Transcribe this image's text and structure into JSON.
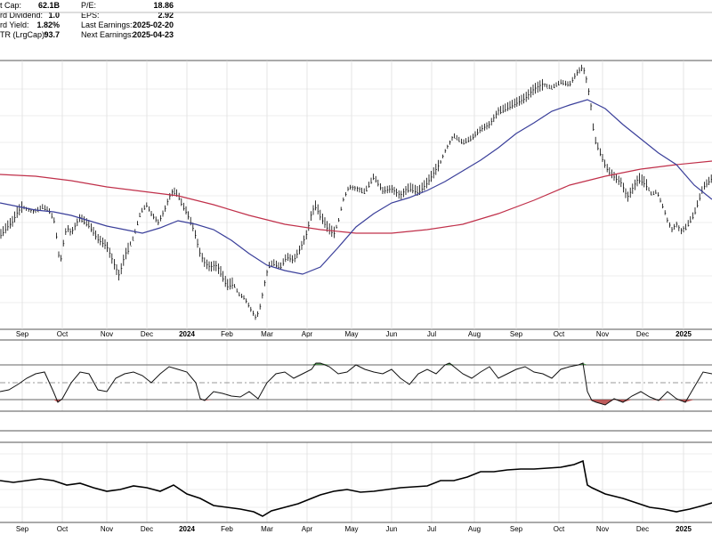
{
  "stats": {
    "left": [
      {
        "label": "t Cap:",
        "value": "62.1B"
      },
      {
        "label": "rd Dividend:",
        "value": "1.0"
      },
      {
        "label": "rd Yield:",
        "value": "1.82%"
      },
      {
        "label": "TR (LrgCap):",
        "value": "93.7"
      }
    ],
    "right": [
      {
        "label": "P/E:",
        "value": "18.86"
      },
      {
        "label": "EPS:",
        "value": "2.92"
      },
      {
        "label": "Last Earnings:",
        "value": "2025-02-20"
      },
      {
        "label": "Next Earnings:",
        "value": "2025-04-23"
      }
    ]
  },
  "colors": {
    "price": "#000000",
    "ma_short": "#3a3f9a",
    "ma_long": "#c0304a",
    "overbought_fill": "#3c8c3c",
    "oversold_fill": "#b34040",
    "grid": "#dcdcdc",
    "frame": "#555555"
  },
  "chart_data": [
    {
      "type": "line",
      "panel": "price",
      "x_ticks": [
        "Sep",
        "Oct",
        "Nov",
        "Dec",
        "2024",
        "Feb",
        "Mar",
        "Apr",
        "May",
        "Jun",
        "Jul",
        "Aug",
        "Sep",
        "Oct",
        "Nov",
        "Dec",
        "2025"
      ],
      "bold_ticks": [
        "2024",
        "2025"
      ],
      "series": [
        {
          "role": "price",
          "x": [
            0,
            5,
            10,
            15,
            18,
            25,
            30,
            38,
            48,
            55,
            62,
            65,
            68,
            72,
            75,
            80,
            90,
            100,
            110,
            120,
            128,
            134,
            140,
            150,
            158,
            165,
            170,
            178,
            185,
            190,
            195,
            200,
            205,
            210,
            218,
            225,
            230,
            236,
            242,
            248,
            255,
            262,
            268,
            275,
            282,
            288,
            293,
            297,
            302,
            308,
            315,
            322,
            330,
            338,
            345,
            350,
            355,
            360,
            368,
            375,
            380,
            385,
            392,
            400,
            410,
            420,
            430,
            440,
            450,
            460,
            470,
            480,
            490,
            495,
            500,
            510,
            520,
            530,
            540,
            550,
            560,
            570,
            580,
            590,
            600,
            610,
            620,
            630,
            640,
            648,
            655,
            660,
            664,
            668,
            672,
            676,
            680,
            684,
            688,
            692,
            698,
            705,
            712,
            718,
            725,
            732,
            738,
            742,
            746,
            750,
            755,
            760,
            765,
            770,
            775,
            780,
            785,
            790,
            795,
            800
          ],
          "y": [
            264,
            258,
            252,
            248,
            240,
            232,
            235,
            238,
            232,
            236,
            250,
            282,
            294,
            268,
            255,
            262,
            244,
            252,
            268,
            276,
            296,
            310,
            288,
            266,
            238,
            230,
            240,
            250,
            236,
            222,
            214,
            218,
            230,
            238,
            258,
            285,
            295,
            300,
            298,
            305,
            320,
            318,
            330,
            335,
            348,
            358,
            342,
            320,
            298,
            295,
            300,
            288,
            292,
            278,
            262,
            240,
            230,
            242,
            255,
            262,
            250,
            226,
            210,
            212,
            215,
            198,
            214,
            212,
            220,
            210,
            215,
            205,
            190,
            182,
            170,
            152,
            160,
            155,
            145,
            140,
            125,
            120,
            115,
            110,
            100,
            95,
            98,
            92,
            95,
            82,
            75,
            94,
            120,
            155,
            165,
            175,
            185,
            192,
            196,
            200,
            205,
            222,
            210,
            200,
            205,
            218,
            215,
            225,
            235,
            248,
            258,
            252,
            260,
            256,
            248,
            240,
            225,
            210,
            205,
            200
          ]
        },
        {
          "role": "ma_short",
          "x": [
            0,
            20,
            40,
            60,
            80,
            100,
            120,
            140,
            160,
            180,
            200,
            220,
            240,
            260,
            280,
            300,
            320,
            340,
            360,
            380,
            400,
            420,
            440,
            460,
            480,
            500,
            520,
            540,
            560,
            580,
            600,
            620,
            640,
            660,
            680,
            700,
            720,
            740,
            760,
            780,
            800
          ],
          "y": [
            228,
            232,
            236,
            238,
            242,
            248,
            254,
            258,
            262,
            256,
            248,
            252,
            258,
            270,
            285,
            298,
            304,
            308,
            300,
            278,
            255,
            240,
            228,
            222,
            214,
            204,
            192,
            180,
            166,
            150,
            138,
            125,
            118,
            112,
            122,
            140,
            156,
            172,
            185,
            208,
            224
          ]
        },
        {
          "role": "ma_long",
          "x": [
            0,
            40,
            80,
            120,
            160,
            200,
            240,
            280,
            320,
            360,
            400,
            440,
            480,
            520,
            560,
            600,
            640,
            680,
            720,
            760,
            800
          ],
          "y": [
            196,
            198,
            203,
            210,
            215,
            220,
            230,
            242,
            252,
            258,
            262,
            262,
            258,
            252,
            240,
            225,
            208,
            198,
            190,
            185,
            181
          ]
        }
      ]
    },
    {
      "type": "line",
      "panel": "oscillator",
      "x_ticks": [
        "Sep",
        "Oct",
        "Nov",
        "Dec",
        "2024",
        "Feb",
        "Mar",
        "Apr",
        "May",
        "Jun",
        "Jul",
        "Aug",
        "Sep",
        "Oct",
        "Nov",
        "Dec",
        "2025"
      ],
      "y_levels": {
        "overbought": 410,
        "mid": 430,
        "oversold": 449
      },
      "series": [
        {
          "role": "oscillator",
          "x": [
            0,
            10,
            20,
            30,
            40,
            50,
            60,
            65,
            70,
            80,
            90,
            100,
            110,
            120,
            130,
            140,
            150,
            160,
            170,
            180,
            190,
            200,
            210,
            220,
            225,
            230,
            240,
            250,
            260,
            270,
            280,
            290,
            300,
            310,
            320,
            330,
            340,
            350,
            355,
            360,
            370,
            380,
            390,
            400,
            410,
            420,
            430,
            440,
            450,
            460,
            470,
            480,
            490,
            500,
            505,
            510,
            520,
            530,
            540,
            550,
            560,
            570,
            580,
            590,
            600,
            610,
            620,
            630,
            640,
            650,
            655,
            660,
            665,
            670,
            680,
            690,
            700,
            710,
            720,
            730,
            740,
            750,
            760,
            770,
            780,
            790,
            800
          ],
          "y": [
            440,
            438,
            432,
            425,
            420,
            418,
            440,
            452,
            448,
            430,
            418,
            420,
            438,
            440,
            425,
            420,
            418,
            422,
            430,
            420,
            412,
            415,
            418,
            430,
            448,
            450,
            440,
            442,
            445,
            446,
            440,
            448,
            430,
            420,
            418,
            425,
            420,
            415,
            408,
            408,
            412,
            420,
            418,
            410,
            415,
            418,
            420,
            415,
            425,
            432,
            420,
            415,
            420,
            410,
            408,
            412,
            420,
            425,
            418,
            412,
            425,
            420,
            415,
            412,
            418,
            420,
            425,
            415,
            412,
            410,
            408,
            440,
            450,
            452,
            455,
            448,
            452,
            445,
            440,
            446,
            450,
            440,
            448,
            452,
            435,
            418,
            420
          ]
        }
      ]
    },
    {
      "type": "line",
      "panel": "relative_strength",
      "x_ticks": [
        "Sep",
        "Oct",
        "Nov",
        "Dec",
        "2024",
        "Feb",
        "Mar",
        "Apr",
        "May",
        "Jun",
        "Jul",
        "Aug",
        "Sep",
        "Oct",
        "Nov",
        "Dec",
        "2025"
      ],
      "series": [
        {
          "role": "rs",
          "x": [
            0,
            15,
            30,
            45,
            60,
            75,
            90,
            105,
            120,
            135,
            150,
            165,
            180,
            195,
            210,
            225,
            240,
            255,
            270,
            285,
            295,
            305,
            320,
            335,
            350,
            360,
            375,
            390,
            405,
            420,
            435,
            450,
            465,
            480,
            495,
            510,
            525,
            540,
            555,
            570,
            585,
            600,
            615,
            630,
            645,
            655,
            660,
            665,
            680,
            700,
            715,
            730,
            745,
            760,
            775,
            790,
            800
          ],
          "y": [
            540,
            542,
            540,
            538,
            540,
            545,
            543,
            548,
            552,
            550,
            546,
            548,
            552,
            545,
            555,
            560,
            568,
            570,
            572,
            575,
            580,
            574,
            570,
            566,
            560,
            556,
            552,
            550,
            553,
            552,
            550,
            548,
            547,
            546,
            540,
            540,
            536,
            530,
            530,
            528,
            527,
            527,
            526,
            525,
            522,
            518,
            545,
            548,
            555,
            560,
            565,
            570,
            572,
            575,
            572,
            568,
            565
          ]
        }
      ]
    }
  ]
}
